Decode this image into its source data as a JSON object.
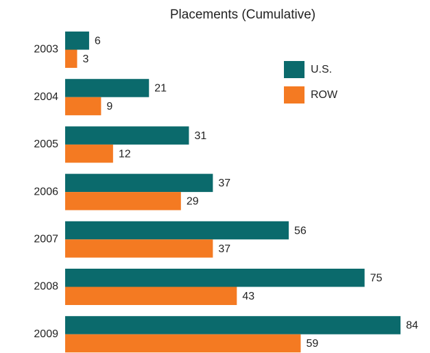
{
  "chart_data": {
    "type": "hbar",
    "title": "Placements (Cumulative)",
    "categories": [
      "2003",
      "2004",
      "2005",
      "2006",
      "2007",
      "2008",
      "2009"
    ],
    "series": [
      {
        "name": "U.S.",
        "color": "#0b6a6c",
        "values": [
          6,
          21,
          31,
          37,
          56,
          75,
          84
        ]
      },
      {
        "name": "ROW",
        "color": "#f47a22",
        "values": [
          3,
          9,
          12,
          29,
          37,
          43,
          59
        ]
      }
    ],
    "legend": "upper right"
  }
}
